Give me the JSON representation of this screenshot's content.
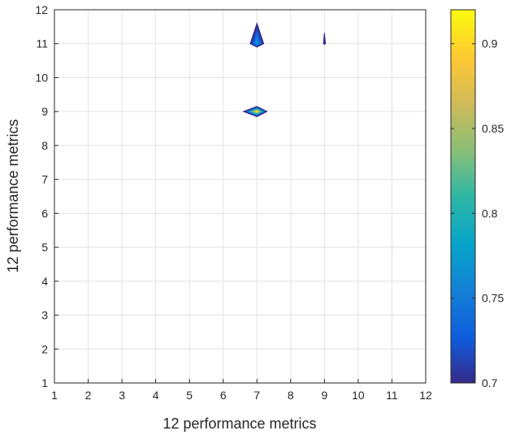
{
  "chart_data": {
    "type": "contour",
    "title": "",
    "xlabel": "12 performance metrics",
    "ylabel": "12 performance metrics",
    "xlim": [
      1,
      12
    ],
    "ylim": [
      1,
      12
    ],
    "xticks": [
      "1",
      "2",
      "3",
      "4",
      "5",
      "6",
      "7",
      "8",
      "9",
      "10",
      "11",
      "12"
    ],
    "yticks": [
      "1",
      "2",
      "3",
      "4",
      "5",
      "6",
      "7",
      "8",
      "9",
      "10",
      "11",
      "12"
    ],
    "grid": true,
    "colormap": "parula",
    "colorbar": {
      "range": [
        0.7,
        0.92
      ],
      "ticks": [
        "0.7",
        "0.75",
        "0.8",
        "0.85",
        "0.9"
      ],
      "tick_values": [
        0.7,
        0.75,
        0.8,
        0.85,
        0.9
      ]
    },
    "features": [
      {
        "name": "peak-7-11",
        "x": 7,
        "y": 11,
        "peak": 0.77,
        "xspan": [
          6.8,
          7.2
        ],
        "yspan": [
          10.9,
          11.6
        ]
      },
      {
        "name": "peak-7-9",
        "x": 7,
        "y": 9,
        "peak": 0.9,
        "xspan": [
          6.6,
          7.3
        ],
        "yspan": [
          8.85,
          9.15
        ]
      },
      {
        "name": "peak-9-11",
        "x": 9,
        "y": 11,
        "peak": 0.71,
        "xspan": [
          8.97,
          9.03
        ],
        "yspan": [
          10.98,
          11.32
        ]
      }
    ]
  }
}
